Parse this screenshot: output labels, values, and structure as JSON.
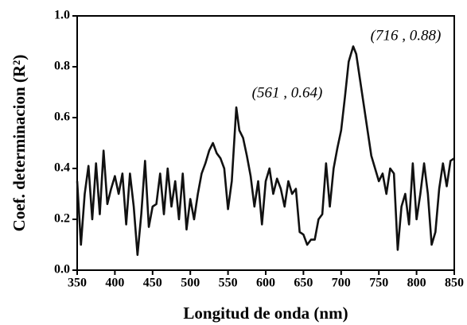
{
  "chart_data": {
    "type": "line",
    "xlabel": "Longitud de onda (nm)",
    "ylabel": "Coef. determinacion (R²)",
    "annotations": [
      "(716 , 0.88)",
      "(561 , 0.64)"
    ],
    "x": [
      350,
      355,
      360,
      365,
      370,
      375,
      380,
      385,
      390,
      395,
      400,
      405,
      410,
      415,
      420,
      425,
      430,
      435,
      440,
      445,
      450,
      455,
      460,
      465,
      470,
      475,
      480,
      485,
      490,
      495,
      500,
      505,
      510,
      515,
      520,
      525,
      530,
      535,
      540,
      545,
      550,
      555,
      561,
      565,
      570,
      575,
      580,
      585,
      590,
      595,
      600,
      605,
      610,
      615,
      620,
      625,
      630,
      635,
      640,
      645,
      650,
      655,
      660,
      665,
      670,
      675,
      680,
      685,
      690,
      695,
      700,
      705,
      710,
      716,
      720,
      725,
      730,
      735,
      740,
      745,
      750,
      755,
      760,
      765,
      770,
      775,
      780,
      785,
      790,
      795,
      800,
      805,
      810,
      815,
      820,
      825,
      830,
      835,
      840,
      845,
      850
    ],
    "series": [
      {
        "name": "R2",
        "color": "#111111",
        "values": [
          0.35,
          0.1,
          0.3,
          0.41,
          0.2,
          0.42,
          0.22,
          0.47,
          0.26,
          0.32,
          0.37,
          0.3,
          0.38,
          0.18,
          0.38,
          0.25,
          0.06,
          0.22,
          0.43,
          0.17,
          0.25,
          0.26,
          0.38,
          0.22,
          0.4,
          0.25,
          0.35,
          0.2,
          0.38,
          0.16,
          0.28,
          0.2,
          0.3,
          0.38,
          0.42,
          0.47,
          0.5,
          0.46,
          0.44,
          0.4,
          0.24,
          0.35,
          0.64,
          0.55,
          0.52,
          0.45,
          0.37,
          0.25,
          0.35,
          0.18,
          0.35,
          0.4,
          0.3,
          0.36,
          0.32,
          0.25,
          0.35,
          0.3,
          0.32,
          0.15,
          0.14,
          0.1,
          0.12,
          0.12,
          0.2,
          0.22,
          0.42,
          0.25,
          0.4,
          0.48,
          0.55,
          0.68,
          0.82,
          0.88,
          0.85,
          0.75,
          0.65,
          0.55,
          0.45,
          0.4,
          0.35,
          0.38,
          0.3,
          0.4,
          0.38,
          0.08,
          0.25,
          0.3,
          0.18,
          0.42,
          0.2,
          0.3,
          0.42,
          0.3,
          0.1,
          0.15,
          0.32,
          0.42,
          0.33,
          0.43,
          0.44
        ]
      }
    ],
    "xlim": [
      350,
      850
    ],
    "xticks": [
      350,
      400,
      450,
      500,
      550,
      600,
      650,
      700,
      750,
      800,
      850
    ],
    "ylim": [
      0,
      1
    ],
    "yticks": [
      {
        "value": 0,
        "label": "0.0"
      },
      {
        "value": 0.2,
        "label": "0.2"
      },
      {
        "value": 0.4,
        "label": "0.4"
      },
      {
        "value": 0.6,
        "label": "0.6"
      },
      {
        "value": 0.8,
        "label": "0.8"
      },
      {
        "value": 1,
        "label": "1.0"
      }
    ],
    "grid": false
  }
}
